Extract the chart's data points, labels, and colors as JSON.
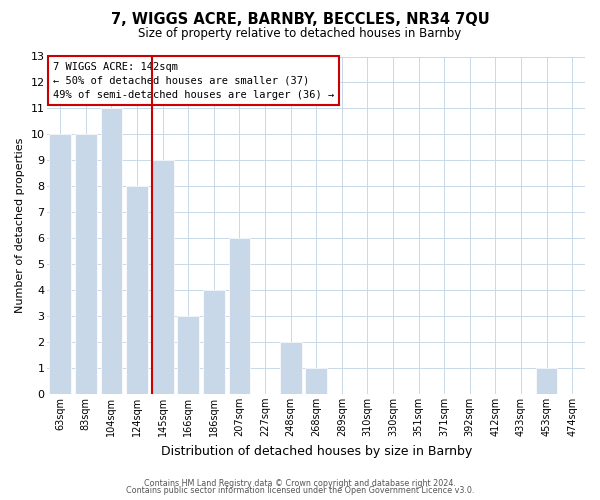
{
  "title": "7, WIGGS ACRE, BARNBY, BECCLES, NR34 7QU",
  "subtitle": "Size of property relative to detached houses in Barnby",
  "xlabel": "Distribution of detached houses by size in Barnby",
  "ylabel": "Number of detached properties",
  "footer_line1": "Contains HM Land Registry data © Crown copyright and database right 2024.",
  "footer_line2": "Contains public sector information licensed under the Open Government Licence v3.0.",
  "bar_labels": [
    "63sqm",
    "83sqm",
    "104sqm",
    "124sqm",
    "145sqm",
    "166sqm",
    "186sqm",
    "207sqm",
    "227sqm",
    "248sqm",
    "268sqm",
    "289sqm",
    "310sqm",
    "330sqm",
    "351sqm",
    "371sqm",
    "392sqm",
    "412sqm",
    "433sqm",
    "453sqm",
    "474sqm"
  ],
  "bar_values": [
    10,
    10,
    11,
    8,
    9,
    3,
    4,
    6,
    0,
    2,
    1,
    0,
    0,
    0,
    0,
    0,
    0,
    0,
    0,
    1,
    0
  ],
  "bar_color": "#c8d8e8",
  "bar_edge_color": "#ffffff",
  "highlight_bar_index": 4,
  "highlight_color": "#cc0000",
  "ylim": [
    0,
    13
  ],
  "yticks": [
    0,
    1,
    2,
    3,
    4,
    5,
    6,
    7,
    8,
    9,
    10,
    11,
    12,
    13
  ],
  "annotation_title": "7 WIGGS ACRE: 142sqm",
  "annotation_line1": "← 50% of detached houses are smaller (37)",
  "annotation_line2": "49% of semi-detached houses are larger (36) →",
  "annotation_box_color": "#ffffff",
  "annotation_box_edge": "#cc0000",
  "grid_color": "#c8d8e8",
  "background_color": "#ffffff"
}
